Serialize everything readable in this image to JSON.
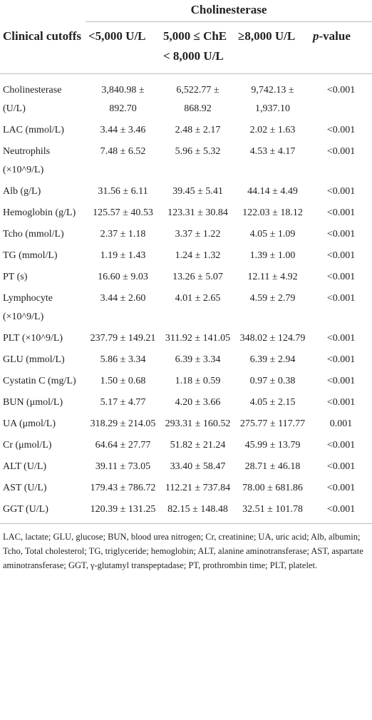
{
  "table": {
    "group_header": "Cholinesterase",
    "columns": [
      "Clinical cutoffs",
      "<5,000 U/L",
      "5,000 ≤ ChE < 8,000 U/L",
      "≥8,000 U/L"
    ],
    "p_column": [
      "p",
      "-value"
    ],
    "rows": [
      [
        "Cholinesterase (U/L)",
        "3,840.98 ± 892.70",
        "6,522.77 ± 868.92",
        "9,742.13 ± 1,937.10",
        "<0.001"
      ],
      [
        "LAC (mmol/L)",
        "3.44 ± 3.46",
        "2.48 ± 2.17",
        "2.02 ± 1.63",
        "<0.001"
      ],
      [
        "Neutrophils (×10^9/L)",
        "7.48 ± 6.52",
        "5.96 ± 5.32",
        "4.53 ± 4.17",
        "<0.001"
      ],
      [
        "Alb (g/L)",
        "31.56 ± 6.11",
        "39.45 ± 5.41",
        "44.14 ± 4.49",
        "<0.001"
      ],
      [
        "Hemoglobin (g/L)",
        "125.57 ± 40.53",
        "123.31 ± 30.84",
        "122.03 ± 18.12",
        "<0.001"
      ],
      [
        "Tcho (mmol/L)",
        "2.37 ± 1.18",
        "3.37 ± 1.22",
        "4.05 ± 1.09",
        "<0.001"
      ],
      [
        "TG (mmol/L)",
        "1.19 ± 1.43",
        "1.24 ± 1.32",
        "1.39 ± 1.00",
        "<0.001"
      ],
      [
        "PT (s)",
        "16.60 ± 9.03",
        "13.26 ± 5.07",
        "12.11 ± 4.92",
        "<0.001"
      ],
      [
        "Lymphocyte (×10^9/L)",
        "3.44 ± 2.60",
        "4.01 ± 2.65",
        "4.59 ± 2.79",
        "<0.001"
      ],
      [
        "PLT (×10^9/L)",
        "237.79 ± 149.21",
        "311.92 ± 141.05",
        "348.02 ± 124.79",
        "<0.001"
      ],
      [
        "GLU (mmol/L)",
        "5.86 ± 3.34",
        "6.39 ± 3.34",
        "6.39 ± 2.94",
        "<0.001"
      ],
      [
        "Cystatin C (mg/L)",
        "1.50 ± 0.68",
        "1.18 ± 0.59",
        "0.97 ± 0.38",
        "<0.001"
      ],
      [
        "BUN (μmol/L)",
        "5.17 ± 4.77",
        "4.20 ± 3.66",
        "4.05 ± 2.15",
        "<0.001"
      ],
      [
        "UA (μmol/L)",
        "318.29 ± 214.05",
        "293.31 ± 160.52",
        "275.77 ± 117.77",
        "0.001"
      ],
      [
        "Cr (μmol/L)",
        "64.64 ± 27.77",
        "51.82 ± 21.24",
        "45.99 ± 13.79",
        "<0.001"
      ],
      [
        "ALT (U/L)",
        "39.11 ± 73.05",
        "33.40 ± 58.47",
        "28.71 ± 46.18",
        "<0.001"
      ],
      [
        "AST (U/L)",
        "179.43 ± 786.72",
        "112.21 ± 737.84",
        "78.00 ± 681.86",
        "<0.001"
      ],
      [
        "GGT (U/L)",
        "120.39 ± 131.25",
        "82.15 ± 148.48",
        "32.51 ± 101.78",
        "<0.001"
      ]
    ],
    "footnote": "LAC, lactate; GLU, glucose; BUN, blood urea nitrogen; Cr, creatinine; UA, uric acid; Alb, albumin; Tcho, Total cholesterol; TG, triglyceride; hemoglobin; ALT, alanine aminotransferase; AST, aspartate aminotransferase; GGT, γ-glutamyl transpeptadase; PT, prothrombin time; PLT, platelet."
  }
}
